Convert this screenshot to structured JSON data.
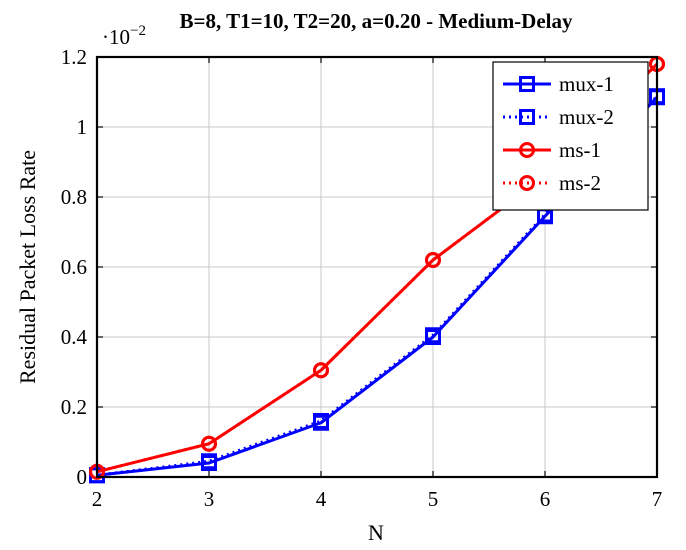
{
  "chart_data": {
    "type": "line",
    "title": "B=8, T1=10, T2=20, a=0.20 - Medium-Delay",
    "xlabel": "N",
    "ylabel": "Residual Packet Loss Rate",
    "y_scale_label": "·10",
    "y_scale_exponent": "−2",
    "x": [
      2,
      3,
      4,
      5,
      6,
      7
    ],
    "xlim": [
      2,
      7
    ],
    "ylim": [
      0,
      1.2
    ],
    "x_ticks": [
      "2",
      "3",
      "4",
      "5",
      "6",
      "7"
    ],
    "y_ticks": [
      "0",
      "0.2",
      "0.4",
      "0.6",
      "0.8",
      "1",
      "1.2"
    ],
    "y_tick_values": [
      0,
      0.2,
      0.4,
      0.6,
      0.8,
      1.0,
      1.2
    ],
    "grid": true,
    "legend_position": "top-right",
    "series": [
      {
        "name": "mux-1",
        "values": [
          0.005,
          0.04,
          0.155,
          0.4,
          0.745,
          1.085
        ],
        "color": "#0000ff",
        "marker": "square",
        "dash": "solid"
      },
      {
        "name": "mux-2",
        "values": [
          0.005,
          0.045,
          0.16,
          0.405,
          0.75,
          1.088
        ],
        "color": "#0000ff",
        "marker": "square",
        "dash": "dotted"
      },
      {
        "name": "ms-1",
        "values": [
          0.015,
          0.095,
          0.305,
          0.62,
          0.86,
          1.18
        ],
        "color": "#ff0000",
        "marker": "circle",
        "dash": "solid"
      },
      {
        "name": "ms-2",
        "values": [
          0.015,
          0.095,
          0.305,
          0.62,
          0.86,
          1.18
        ],
        "color": "#ff0000",
        "marker": "circle",
        "dash": "dotted"
      }
    ]
  }
}
